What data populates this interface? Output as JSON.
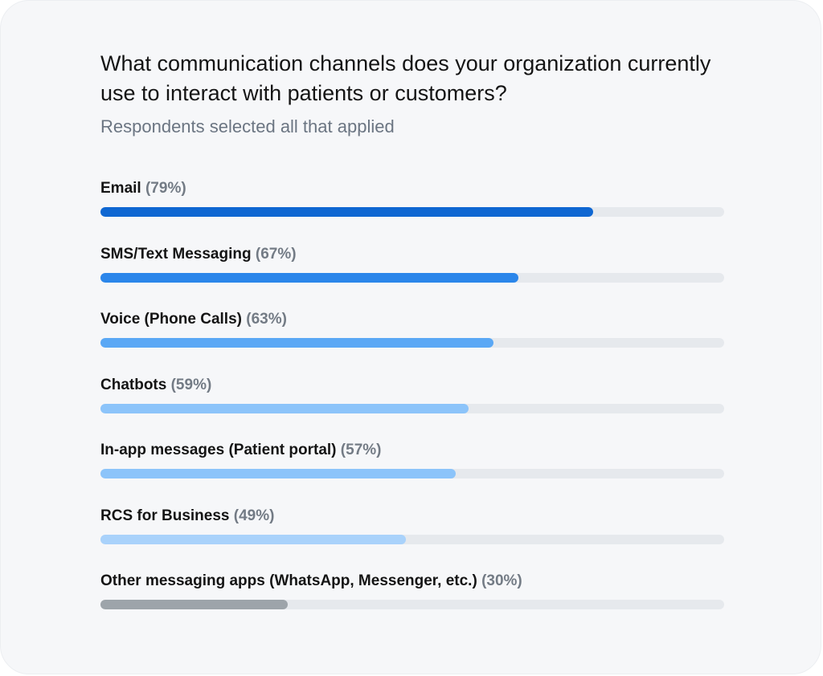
{
  "chart_data": {
    "type": "bar",
    "orientation": "horizontal",
    "title": "What communication channels does your organization currently use to interact with patients or customers?",
    "subtitle": "Respondents selected all that applied",
    "categories": [
      "Email",
      "SMS/Text Messaging",
      "Voice (Phone Calls)",
      "Chatbots",
      "In-app messages (Patient portal)",
      "RCS for Business",
      "Other messaging apps (WhatsApp, Messenger, etc.)"
    ],
    "values": [
      79,
      67,
      63,
      59,
      57,
      49,
      30
    ],
    "value_labels": [
      "(79%)",
      "(67%)",
      "(63%)",
      "(59%)",
      "(57%)",
      "(49%)",
      "(30%)"
    ],
    "unit": "%",
    "xlim": [
      0,
      100
    ],
    "grid": false,
    "colors": [
      "#0f67d2",
      "#2b86ea",
      "#5aa8f5",
      "#8cc4fa",
      "#8cc4fa",
      "#a9d2fb",
      "#9da4aa"
    ],
    "track_color": "#e6e9ed"
  }
}
